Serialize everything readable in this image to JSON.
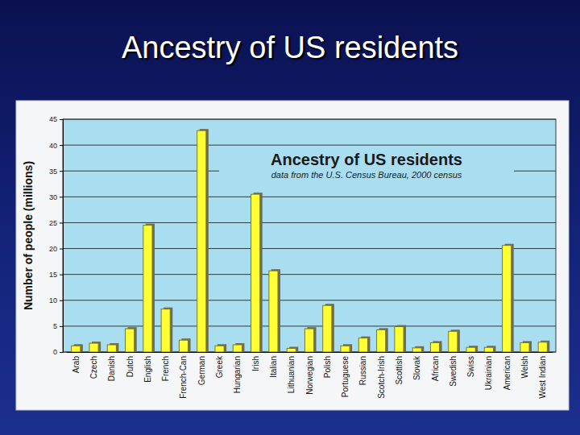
{
  "slide_title": "Ancestry of US residents",
  "chart_data": {
    "type": "bar",
    "title": "Ancestry of US residents",
    "subtitle": "data from the U.S. Census Bureau, 2000 census",
    "y_label": "Number of people (millions)",
    "categories": [
      "Arab",
      "Czech",
      "Danish",
      "Dutch",
      "English",
      "French",
      "French-Can",
      "German",
      "Greek",
      "Hungarian",
      "Irish",
      "Italian",
      "Lithuanian",
      "Norwegian",
      "Polish",
      "Portuguese",
      "Russian",
      "Scotch-Irish",
      "Scottish",
      "Slovak",
      "African",
      "Swedish",
      "Swiss",
      "Ukrainian",
      "American",
      "Welsh",
      "West Indian"
    ],
    "values": [
      1.2,
      1.7,
      1.4,
      4.5,
      24.5,
      8.3,
      2.3,
      42.8,
      1.2,
      1.4,
      30.5,
      15.7,
      0.7,
      4.5,
      9.0,
      1.2,
      2.7,
      4.3,
      4.9,
      0.8,
      1.8,
      4.0,
      0.9,
      0.9,
      20.6,
      1.8,
      1.9
    ],
    "color": "#ffff33",
    "ylim": [
      0,
      45
    ],
    "yticks": [
      0,
      5,
      10,
      15,
      20,
      25,
      30,
      35,
      40,
      45
    ],
    "grid": true
  }
}
